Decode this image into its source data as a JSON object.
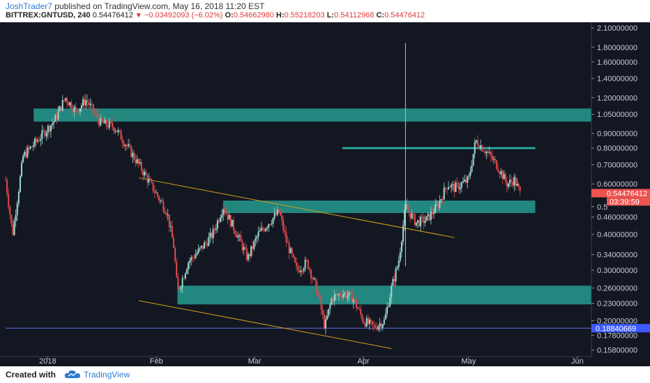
{
  "header": {
    "author": "JoshTrader7",
    "published": "published on TradingView.com, May 16, 2018 11:20 EST",
    "symbol": "BITTREX:GNTUSD, 240",
    "last": "0.54476412",
    "change": "−0.03492093 (−6.02%)",
    "o_label": "O:",
    "o": "0.54662980",
    "h_label": "H:",
    "h": "0.55218203",
    "l_label": "L:",
    "l": "0.54112968",
    "c_label": "C:",
    "c": "0.54476412"
  },
  "footer": {
    "created": "Created with",
    "brand": "TradingView"
  },
  "colors": {
    "background": "#131722",
    "zone": "#26a69a",
    "trendline": "#d4a017",
    "up_candle": "#9fd8d0",
    "down_candle": "#e04a4a",
    "last_price": "#ef5350",
    "hline": "#5b6cd9",
    "hline_label": "#3d5afe"
  },
  "chart_data": {
    "type": "candlestick",
    "y_scale": "log",
    "ylim": [
      0.15,
      2.15
    ],
    "xlim": [
      "2017-12-20",
      "2018-06-05"
    ],
    "y_ticks": [
      "2.10000000",
      "1.80000000",
      "1.60000000",
      "1.40000000",
      "1.20000000",
      "1.05000000",
      "0.90000000",
      "0.80000000",
      "0.70000000",
      "0.60000000",
      "0.5",
      "0.46000000",
      "0.40000000",
      "0.34000000",
      "0.30000000",
      "0.26000000",
      "0.23000000",
      "0.20000000",
      "0.17800000",
      "0.15800000"
    ],
    "y_tick_values": [
      2.1,
      1.8,
      1.6,
      1.4,
      1.2,
      1.05,
      0.9,
      0.8,
      0.7,
      0.6,
      0.5,
      0.46,
      0.4,
      0.34,
      0.3,
      0.26,
      0.23,
      0.2,
      0.178,
      0.158
    ],
    "x_ticks": [
      {
        "label": "2018",
        "date": "2018-01-01"
      },
      {
        "label": "Feb",
        "date": "2018-02-01"
      },
      {
        "label": "Mar",
        "date": "2018-03-01"
      },
      {
        "label": "Apr",
        "date": "2018-04-01"
      },
      {
        "label": "May",
        "date": "2018-05-01"
      },
      {
        "label": "Jun",
        "date": "2018-06-01"
      }
    ],
    "price_path": [
      [
        "2017-12-20",
        0.62
      ],
      [
        "2017-12-22",
        0.4
      ],
      [
        "2017-12-25",
        0.75
      ],
      [
        "2017-12-29",
        0.85
      ],
      [
        "2018-01-03",
        1.0
      ],
      [
        "2018-01-06",
        1.2
      ],
      [
        "2018-01-09",
        1.08
      ],
      [
        "2018-01-12",
        1.18
      ],
      [
        "2018-01-16",
        0.98
      ],
      [
        "2018-01-20",
        0.95
      ],
      [
        "2018-01-24",
        0.8
      ],
      [
        "2018-01-27",
        0.7
      ],
      [
        "2018-01-31",
        0.58
      ],
      [
        "2018-02-04",
        0.48
      ],
      [
        "2018-02-06",
        0.36
      ],
      [
        "2018-02-07",
        0.25
      ],
      [
        "2018-02-10",
        0.32
      ],
      [
        "2018-02-14",
        0.36
      ],
      [
        "2018-02-17",
        0.4
      ],
      [
        "2018-02-20",
        0.5
      ],
      [
        "2018-02-24",
        0.4
      ],
      [
        "2018-02-27",
        0.33
      ],
      [
        "2018-03-02",
        0.4
      ],
      [
        "2018-03-05",
        0.44
      ],
      [
        "2018-03-08",
        0.48
      ],
      [
        "2018-03-10",
        0.38
      ],
      [
        "2018-03-13",
        0.3
      ],
      [
        "2018-03-16",
        0.32
      ],
      [
        "2018-03-19",
        0.25
      ],
      [
        "2018-03-21",
        0.19
      ],
      [
        "2018-03-23",
        0.24
      ],
      [
        "2018-03-26",
        0.25
      ],
      [
        "2018-03-29",
        0.24
      ],
      [
        "2018-04-01",
        0.2
      ],
      [
        "2018-04-04",
        0.19
      ],
      [
        "2018-04-07",
        0.2
      ],
      [
        "2018-04-09",
        0.26
      ],
      [
        "2018-04-11",
        0.32
      ],
      [
        "2018-04-13",
        0.5
      ],
      [
        "2018-04-16",
        0.44
      ],
      [
        "2018-04-19",
        0.45
      ],
      [
        "2018-04-22",
        0.5
      ],
      [
        "2018-04-25",
        0.6
      ],
      [
        "2018-04-27",
        0.58
      ],
      [
        "2018-04-29",
        0.6
      ],
      [
        "2018-05-01",
        0.62
      ],
      [
        "2018-05-03",
        0.85
      ],
      [
        "2018-05-06",
        0.78
      ],
      [
        "2018-05-09",
        0.7
      ],
      [
        "2018-05-12",
        0.6
      ],
      [
        "2018-05-14",
        0.62
      ],
      [
        "2018-05-16",
        0.545
      ]
    ],
    "spike": {
      "date": "2018-04-13",
      "low": 0.31,
      "high": 1.86
    },
    "zones": [
      {
        "from": "2017-12-28",
        "to": "2018-06-08",
        "y1": 0.99,
        "y2": 1.1
      },
      {
        "from": "2018-02-20",
        "to": "2018-05-20",
        "y1": 0.475,
        "y2": 0.525
      },
      {
        "from": "2018-02-07",
        "to": "2018-06-08",
        "y1": 0.228,
        "y2": 0.265
      }
    ],
    "resistance_line": {
      "from": "2018-03-26",
      "to": "2018-05-20",
      "y": 0.8
    },
    "trendlines": [
      {
        "from": [
          "2018-01-27",
          0.63
        ],
        "to": [
          "2018-04-27",
          0.39
        ]
      },
      {
        "from": [
          "2018-01-27",
          0.235
        ],
        "to": [
          "2018-04-09",
          0.16
        ]
      }
    ],
    "last_price": {
      "value": "0.54476412",
      "countdown": "03:39:59",
      "y": 0.545
    },
    "hline": {
      "value": "0.18840669",
      "y": 0.1884
    }
  }
}
